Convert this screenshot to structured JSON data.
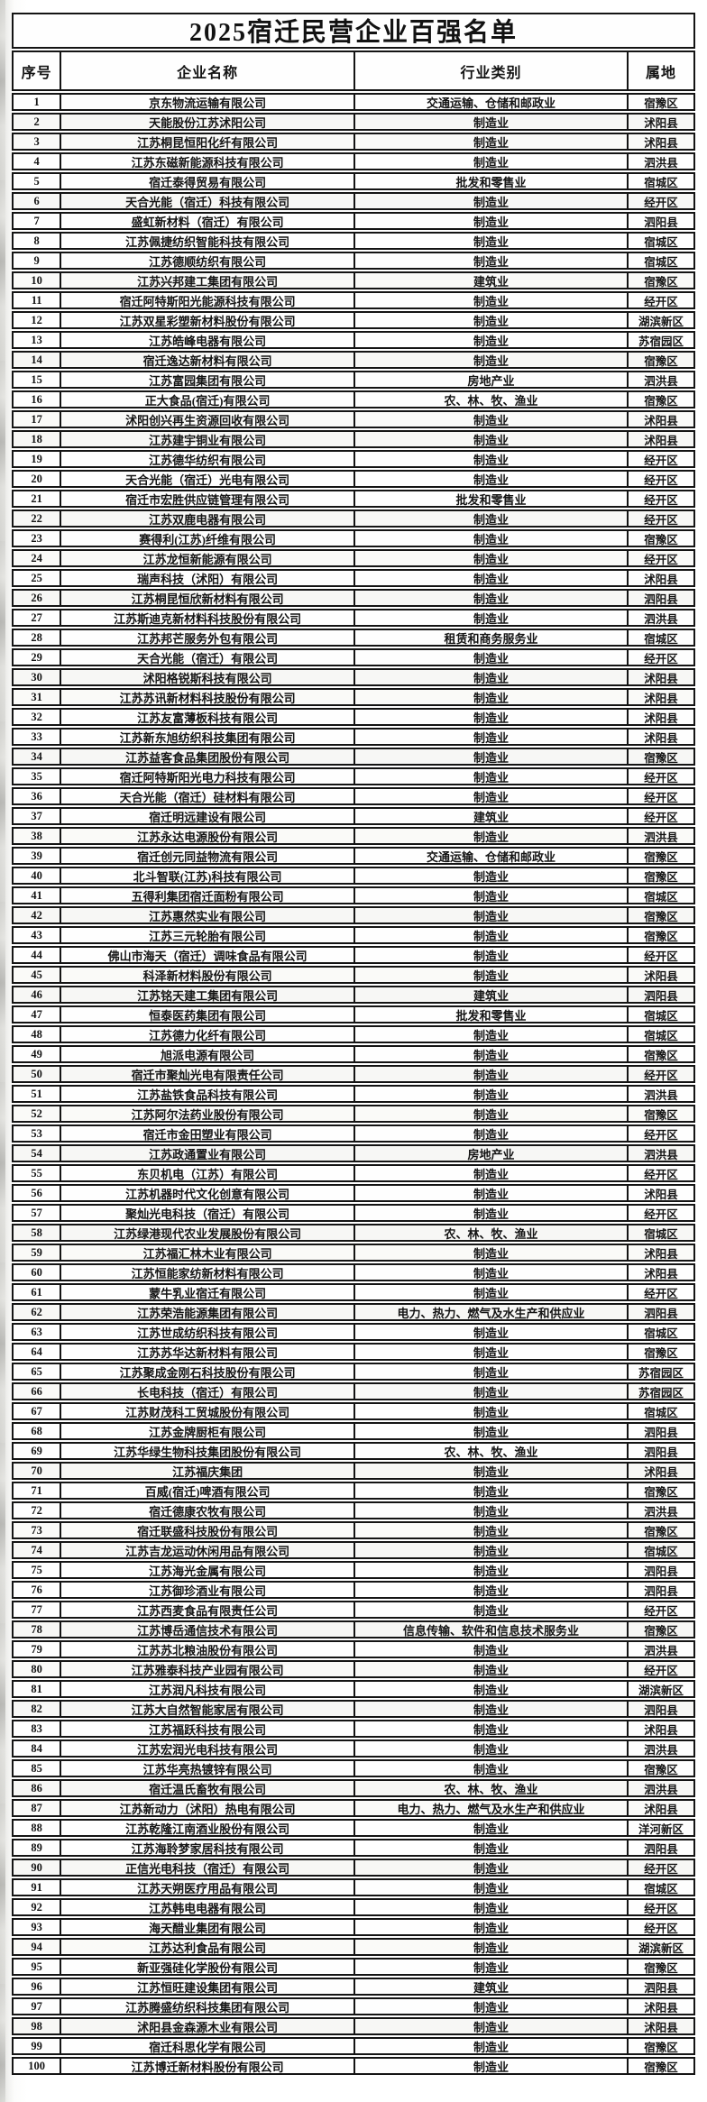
{
  "title": "2025宿迁民营企业百强名单",
  "columns": {
    "rank": "序号",
    "name": "企业名称",
    "industry": "行业类别",
    "district": "属地"
  },
  "rows": [
    {
      "rank": "1",
      "name": "京东物流运输有限公司",
      "industry": "交通运输、仓储和邮政业",
      "district": "宿豫区"
    },
    {
      "rank": "2",
      "name": "天能股份江苏沭阳公司",
      "industry": "制造业",
      "district": "沭阳县"
    },
    {
      "rank": "3",
      "name": "江苏桐昆恒阳化纤有限公司",
      "industry": "制造业",
      "district": "沭阳县"
    },
    {
      "rank": "4",
      "name": "江苏东磁新能源科技有限公司",
      "industry": "制造业",
      "district": "泗洪县"
    },
    {
      "rank": "5",
      "name": "宿迁泰得贸易有限公司",
      "industry": "批发和零售业",
      "district": "宿城区"
    },
    {
      "rank": "6",
      "name": "天合光能（宿迁）科技有限公司",
      "industry": "制造业",
      "district": "经开区"
    },
    {
      "rank": "7",
      "name": "盛虹新材料（宿迁）有限公司",
      "industry": "制造业",
      "district": "泗阳县"
    },
    {
      "rank": "8",
      "name": "江苏佩捷纺织智能科技有限公司",
      "industry": "制造业",
      "district": "宿城区"
    },
    {
      "rank": "9",
      "name": "江苏德顺纺织有限公司",
      "industry": "制造业",
      "district": "宿城区"
    },
    {
      "rank": "10",
      "name": "江苏兴邦建工集团有限公司",
      "industry": "建筑业",
      "district": "宿豫区"
    },
    {
      "rank": "11",
      "name": "宿迁阿特斯阳光能源科技有限公司",
      "industry": "制造业",
      "district": "经开区"
    },
    {
      "rank": "12",
      "name": "江苏双星彩塑新材料股份有限公司",
      "industry": "制造业",
      "district": "湖滨新区"
    },
    {
      "rank": "13",
      "name": "江苏皓峰电器有限公司",
      "industry": "制造业",
      "district": "苏宿园区"
    },
    {
      "rank": "14",
      "name": "宿迁逸达新材料有限公司",
      "industry": "制造业",
      "district": "宿豫区"
    },
    {
      "rank": "15",
      "name": "江苏富园集团有限公司",
      "industry": "房地产业",
      "district": "泗洪县"
    },
    {
      "rank": "16",
      "name": "正大食品(宿迁)有限公司",
      "industry": "农、林、牧、渔业",
      "district": "宿豫区"
    },
    {
      "rank": "17",
      "name": "沭阳创兴再生资源回收有限公司",
      "industry": "制造业",
      "district": "沭阳县"
    },
    {
      "rank": "18",
      "name": "江苏建宇铜业有限公司",
      "industry": "制造业",
      "district": "沭阳县"
    },
    {
      "rank": "19",
      "name": "江苏德华纺织有限公司",
      "industry": "制造业",
      "district": "经开区"
    },
    {
      "rank": "20",
      "name": "天合光能（宿迁）光电有限公司",
      "industry": "制造业",
      "district": "经开区"
    },
    {
      "rank": "21",
      "name": "宿迁市宏胜供应链管理有限公司",
      "industry": "批发和零售业",
      "district": "经开区"
    },
    {
      "rank": "22",
      "name": "江苏双鹿电器有限公司",
      "industry": "制造业",
      "district": "经开区"
    },
    {
      "rank": "23",
      "name": "赛得利(江苏)纤维有限公司",
      "industry": "制造业",
      "district": "宿豫区"
    },
    {
      "rank": "24",
      "name": "江苏龙恒新能源有限公司",
      "industry": "制造业",
      "district": "经开区"
    },
    {
      "rank": "25",
      "name": "瑞声科技（沭阳）有限公司",
      "industry": "制造业",
      "district": "沭阳县"
    },
    {
      "rank": "26",
      "name": "江苏桐昆恒欣新材料有限公司",
      "industry": "制造业",
      "district": "泗阳县"
    },
    {
      "rank": "27",
      "name": "江苏斯迪克新材料科技股份有限公司",
      "industry": "制造业",
      "district": "泗洪县"
    },
    {
      "rank": "28",
      "name": "江苏邦芒服务外包有限公司",
      "industry": "租赁和商务服务业",
      "district": "宿城区"
    },
    {
      "rank": "29",
      "name": "天合光能（宿迁）有限公司",
      "industry": "制造业",
      "district": "经开区"
    },
    {
      "rank": "30",
      "name": "沭阳格锐斯科技有限公司",
      "industry": "制造业",
      "district": "沭阳县"
    },
    {
      "rank": "31",
      "name": "江苏苏讯新材料科技股份有限公司",
      "industry": "制造业",
      "district": "沭阳县"
    },
    {
      "rank": "32",
      "name": "江苏友富薄板科技有限公司",
      "industry": "制造业",
      "district": "沭阳县"
    },
    {
      "rank": "33",
      "name": "江苏新东旭纺织科技集团有限公司",
      "industry": "制造业",
      "district": "沭阳县"
    },
    {
      "rank": "34",
      "name": "江苏益客食品集团股份有限公司",
      "industry": "制造业",
      "district": "宿豫区"
    },
    {
      "rank": "35",
      "name": "宿迁阿特斯阳光电力科技有限公司",
      "industry": "制造业",
      "district": "经开区"
    },
    {
      "rank": "36",
      "name": "天合光能（宿迁）硅材料有限公司",
      "industry": "制造业",
      "district": "经开区"
    },
    {
      "rank": "37",
      "name": "宿迁明远建设有限公司",
      "industry": "建筑业",
      "district": "经开区"
    },
    {
      "rank": "38",
      "name": "江苏永达电源股份有限公司",
      "industry": "制造业",
      "district": "泗洪县"
    },
    {
      "rank": "39",
      "name": "宿迁创元同益物流有限公司",
      "industry": "交通运输、仓储和邮政业",
      "district": "宿豫区"
    },
    {
      "rank": "40",
      "name": "北斗智联(江苏)科技有限公司",
      "industry": "制造业",
      "district": "宿豫区"
    },
    {
      "rank": "41",
      "name": "五得利集团宿迁面粉有限公司",
      "industry": "制造业",
      "district": "宿城区"
    },
    {
      "rank": "42",
      "name": "江苏惠然实业有限公司",
      "industry": "制造业",
      "district": "宿豫区"
    },
    {
      "rank": "43",
      "name": "江苏三元轮胎有限公司",
      "industry": "制造业",
      "district": "宿豫区"
    },
    {
      "rank": "44",
      "name": "佛山市海天（宿迁）调味食品有限公司",
      "industry": "制造业",
      "district": "经开区"
    },
    {
      "rank": "45",
      "name": "科泽新材料股份有限公司",
      "industry": "制造业",
      "district": "沭阳县"
    },
    {
      "rank": "46",
      "name": "江苏铭天建工集团有限公司",
      "industry": "建筑业",
      "district": "泗阳县"
    },
    {
      "rank": "47",
      "name": "恒泰医药集团有限公司",
      "industry": "批发和零售业",
      "district": "宿城区"
    },
    {
      "rank": "48",
      "name": "江苏德力化纤有限公司",
      "industry": "制造业",
      "district": "宿城区"
    },
    {
      "rank": "49",
      "name": "旭派电源有限公司",
      "industry": "制造业",
      "district": "宿豫区"
    },
    {
      "rank": "50",
      "name": "宿迁市聚灿光电有限责任公司",
      "industry": "制造业",
      "district": "经开区"
    },
    {
      "rank": "51",
      "name": "江苏盐铁食品科技有限公司",
      "industry": "制造业",
      "district": "泗洪县"
    },
    {
      "rank": "52",
      "name": "江苏阿尔法药业股份有限公司",
      "industry": "制造业",
      "district": "宿豫区"
    },
    {
      "rank": "53",
      "name": "宿迁市金田塑业有限公司",
      "industry": "制造业",
      "district": "经开区"
    },
    {
      "rank": "54",
      "name": "江苏政通置业有限公司",
      "industry": "房地产业",
      "district": "泗洪县"
    },
    {
      "rank": "55",
      "name": "东贝机电（江苏）有限公司",
      "industry": "制造业",
      "district": "经开区"
    },
    {
      "rank": "56",
      "name": "江苏机器时代文化创意有限公司",
      "industry": "制造业",
      "district": "沭阳县"
    },
    {
      "rank": "57",
      "name": "聚灿光电科技（宿迁）有限公司",
      "industry": "制造业",
      "district": "经开区"
    },
    {
      "rank": "58",
      "name": "江苏绿港现代农业发展股份有限公司",
      "industry": "农、林、牧、渔业",
      "district": "宿城区"
    },
    {
      "rank": "59",
      "name": "江苏福汇林木业有限公司",
      "industry": "制造业",
      "district": "沭阳县"
    },
    {
      "rank": "60",
      "name": "江苏恒能家纺新材料有限公司",
      "industry": "制造业",
      "district": "沭阳县"
    },
    {
      "rank": "61",
      "name": "蒙牛乳业宿迁有限公司",
      "industry": "制造业",
      "district": "经开区"
    },
    {
      "rank": "62",
      "name": "江苏荣浩能源集团有限公司",
      "industry": "电力、热力、燃气及水生产和供应业",
      "district": "泗阳县"
    },
    {
      "rank": "63",
      "name": "江苏世成纺织科技有限公司",
      "industry": "制造业",
      "district": "宿城区"
    },
    {
      "rank": "64",
      "name": "江苏苏华达新材料有限公司",
      "industry": "制造业",
      "district": "宿豫区"
    },
    {
      "rank": "65",
      "name": "江苏聚成金刚石科技股份有限公司",
      "industry": "制造业",
      "district": "苏宿园区"
    },
    {
      "rank": "66",
      "name": "长电科技（宿迁）有限公司",
      "industry": "制造业",
      "district": "苏宿园区"
    },
    {
      "rank": "67",
      "name": "江苏财茂科工贸城股份有限公司",
      "industry": "制造业",
      "district": "宿城区"
    },
    {
      "rank": "68",
      "name": "江苏金牌厨柜有限公司",
      "industry": "制造业",
      "district": "泗阳县"
    },
    {
      "rank": "69",
      "name": "江苏华绿生物科技集团股份有限公司",
      "industry": "农、林、牧、渔业",
      "district": "泗阳县"
    },
    {
      "rank": "70",
      "name": "江苏福庆集团",
      "industry": "制造业",
      "district": "沭阳县"
    },
    {
      "rank": "71",
      "name": "百威(宿迁)啤酒有限公司",
      "industry": "制造业",
      "district": "宿豫区"
    },
    {
      "rank": "72",
      "name": "宿迁德康农牧有限公司",
      "industry": "制造业",
      "district": "泗洪县"
    },
    {
      "rank": "73",
      "name": "宿迁联盛科技股份有限公司",
      "industry": "制造业",
      "district": "宿豫区"
    },
    {
      "rank": "74",
      "name": "江苏吉龙运动休闲用品有限公司",
      "industry": "制造业",
      "district": "宿城区"
    },
    {
      "rank": "75",
      "name": "江苏海光金属有限公司",
      "industry": "制造业",
      "district": "泗阳县"
    },
    {
      "rank": "76",
      "name": "江苏御珍酒业有限公司",
      "industry": "制造业",
      "district": "泗阳县"
    },
    {
      "rank": "77",
      "name": "江苏西麦食品有限责任公司",
      "industry": "制造业",
      "district": "经开区"
    },
    {
      "rank": "78",
      "name": "江苏博岳通信技术有限公司",
      "industry": "信息传输、软件和信息技术服务业",
      "district": "宿豫区"
    },
    {
      "rank": "79",
      "name": "江苏苏北粮油股份有限公司",
      "industry": "制造业",
      "district": "泗洪县"
    },
    {
      "rank": "80",
      "name": "江苏雅泰科技产业园有限公司",
      "industry": "制造业",
      "district": "经开区"
    },
    {
      "rank": "81",
      "name": "江苏润凡科技有限公司",
      "industry": "制造业",
      "district": "湖滨新区"
    },
    {
      "rank": "82",
      "name": "江苏大自然智能家居有限公司",
      "industry": "制造业",
      "district": "泗阳县"
    },
    {
      "rank": "83",
      "name": "江苏福跃科技有限公司",
      "industry": "制造业",
      "district": "沭阳县"
    },
    {
      "rank": "84",
      "name": "江苏宏润光电科技有限公司",
      "industry": "制造业",
      "district": "泗洪县"
    },
    {
      "rank": "85",
      "name": "江苏华亮热镀锌有限公司",
      "industry": "制造业",
      "district": "宿豫区"
    },
    {
      "rank": "86",
      "name": "宿迁温氏畜牧有限公司",
      "industry": "农、林、牧、渔业",
      "district": "泗洪县"
    },
    {
      "rank": "87",
      "name": "江苏新动力（沭阳）热电有限公司",
      "industry": "电力、热力、燃气及水生产和供应业",
      "district": "沭阳县"
    },
    {
      "rank": "88",
      "name": "江苏乾隆江南酒业股份有限公司",
      "industry": "制造业",
      "district": "洋河新区"
    },
    {
      "rank": "89",
      "name": "江苏海聆梦家居科技有限公司",
      "industry": "制造业",
      "district": "泗阳县"
    },
    {
      "rank": "90",
      "name": "正信光电科技（宿迁）有限公司",
      "industry": "制造业",
      "district": "经开区"
    },
    {
      "rank": "91",
      "name": "江苏天朔医疗用品有限公司",
      "industry": "制造业",
      "district": "宿城区"
    },
    {
      "rank": "92",
      "name": "江苏韩电电器有限公司",
      "industry": "制造业",
      "district": "经开区"
    },
    {
      "rank": "93",
      "name": "海天醋业集团有限公司",
      "industry": "制造业",
      "district": "经开区"
    },
    {
      "rank": "94",
      "name": "江苏达利食品有限公司",
      "industry": "制造业",
      "district": "湖滨新区"
    },
    {
      "rank": "95",
      "name": "新亚强硅化学股份有限公司",
      "industry": "制造业",
      "district": "宿豫区"
    },
    {
      "rank": "96",
      "name": "江苏恒旺建设集团有限公司",
      "industry": "建筑业",
      "district": "泗阳县"
    },
    {
      "rank": "97",
      "name": "江苏腾盛纺织科技集团有限公司",
      "industry": "制造业",
      "district": "沭阳县"
    },
    {
      "rank": "98",
      "name": "沭阳县金森源木业有限公司",
      "industry": "制造业",
      "district": "沭阳县"
    },
    {
      "rank": "99",
      "name": "宿迁科思化学有限公司",
      "industry": "制造业",
      "district": "宿豫区"
    },
    {
      "rank": "100",
      "name": "江苏博迁新材料股份有限公司",
      "industry": "制造业",
      "district": "宿豫区"
    }
  ]
}
